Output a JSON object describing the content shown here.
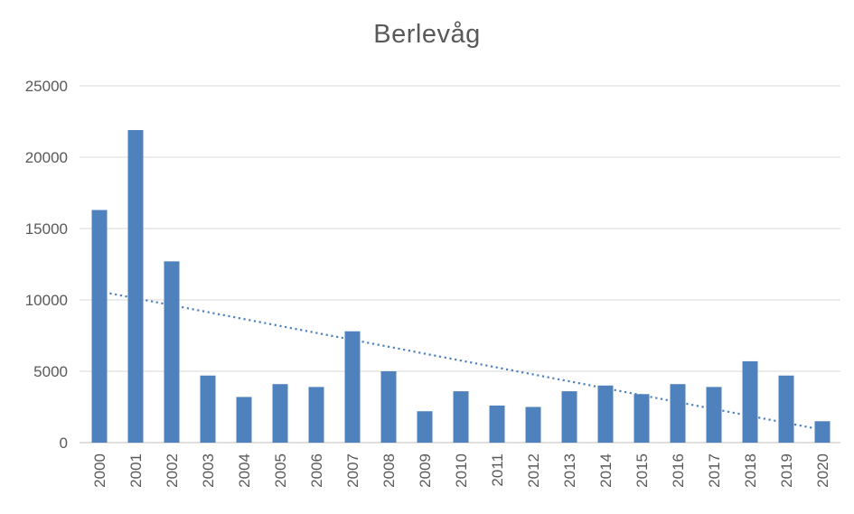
{
  "chart_data": {
    "type": "bar",
    "title": "Berlevåg",
    "categories": [
      "2000",
      "2001",
      "2002",
      "2003",
      "2004",
      "2005",
      "2006",
      "2007",
      "2008",
      "2009",
      "2010",
      "2011",
      "2012",
      "2013",
      "2014",
      "2015",
      "2016",
      "2017",
      "2018",
      "2019",
      "2020"
    ],
    "values": [
      16300,
      21900,
      12700,
      4700,
      3200,
      4100,
      3900,
      7800,
      5000,
      2200,
      3600,
      2600,
      2500,
      3600,
      4000,
      3400,
      4100,
      3900,
      5700,
      4700,
      1500
    ],
    "xlabel": "",
    "ylabel": "",
    "ylim": [
      0,
      25000
    ],
    "yticks": [
      0,
      5000,
      10000,
      15000,
      20000,
      25000
    ],
    "grid": true,
    "legend_position": "none",
    "bar_color": "#4F81BD",
    "text_color": "#595959",
    "gridline_color": "#D9D9D9",
    "axis_color": "#BFBFBF",
    "trendline": {
      "type": "linear",
      "style": "dotted",
      "color": "#4F81BD",
      "start_value": 10600,
      "end_value": 900
    }
  }
}
